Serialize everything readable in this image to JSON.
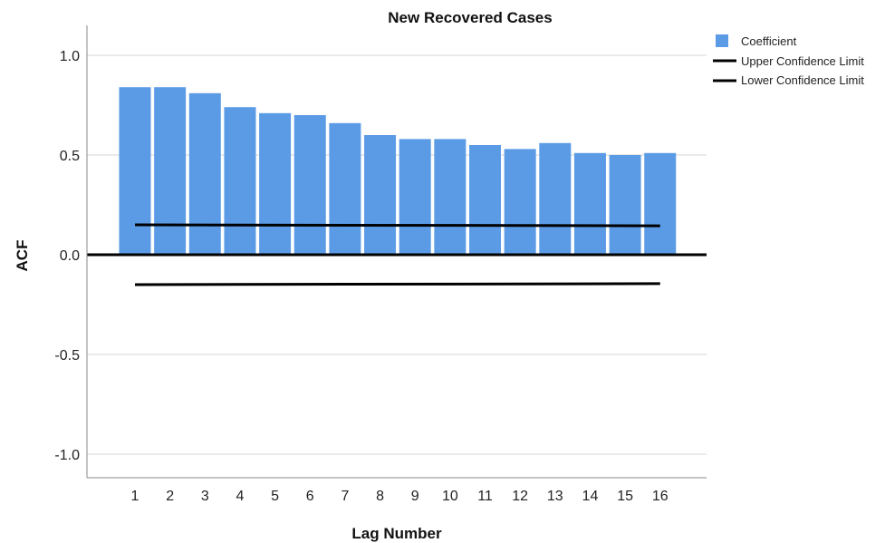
{
  "chart_data": {
    "type": "bar",
    "title": "New Recovered Cases",
    "xlabel": "Lag Number",
    "ylabel": "ACF",
    "categories": [
      "1",
      "2",
      "3",
      "4",
      "5",
      "6",
      "7",
      "8",
      "9",
      "10",
      "11",
      "12",
      "13",
      "14",
      "15",
      "16"
    ],
    "ylim": [
      -1.1,
      1.1
    ],
    "yticks": [
      "1.0",
      "0.5",
      "0.0",
      "-0.5",
      "-1.0"
    ],
    "ytick_values": [
      1.0,
      0.5,
      0.0,
      -0.5,
      -1.0
    ],
    "series": [
      {
        "name": "Coefficient",
        "values": [
          0.84,
          0.84,
          0.81,
          0.74,
          0.71,
          0.7,
          0.66,
          0.6,
          0.58,
          0.58,
          0.55,
          0.53,
          0.56,
          0.51,
          0.5,
          0.51
        ],
        "color": "#5b9be6"
      }
    ],
    "confidence_limits": [
      {
        "name": "Upper Confidence Limit",
        "start": 0.15,
        "end": 0.145,
        "color": "#000000"
      },
      {
        "name": "Lower Confidence Limit",
        "start": -0.15,
        "end": -0.145,
        "color": "#000000"
      }
    ],
    "grid": true,
    "legend_position": "top-right"
  }
}
